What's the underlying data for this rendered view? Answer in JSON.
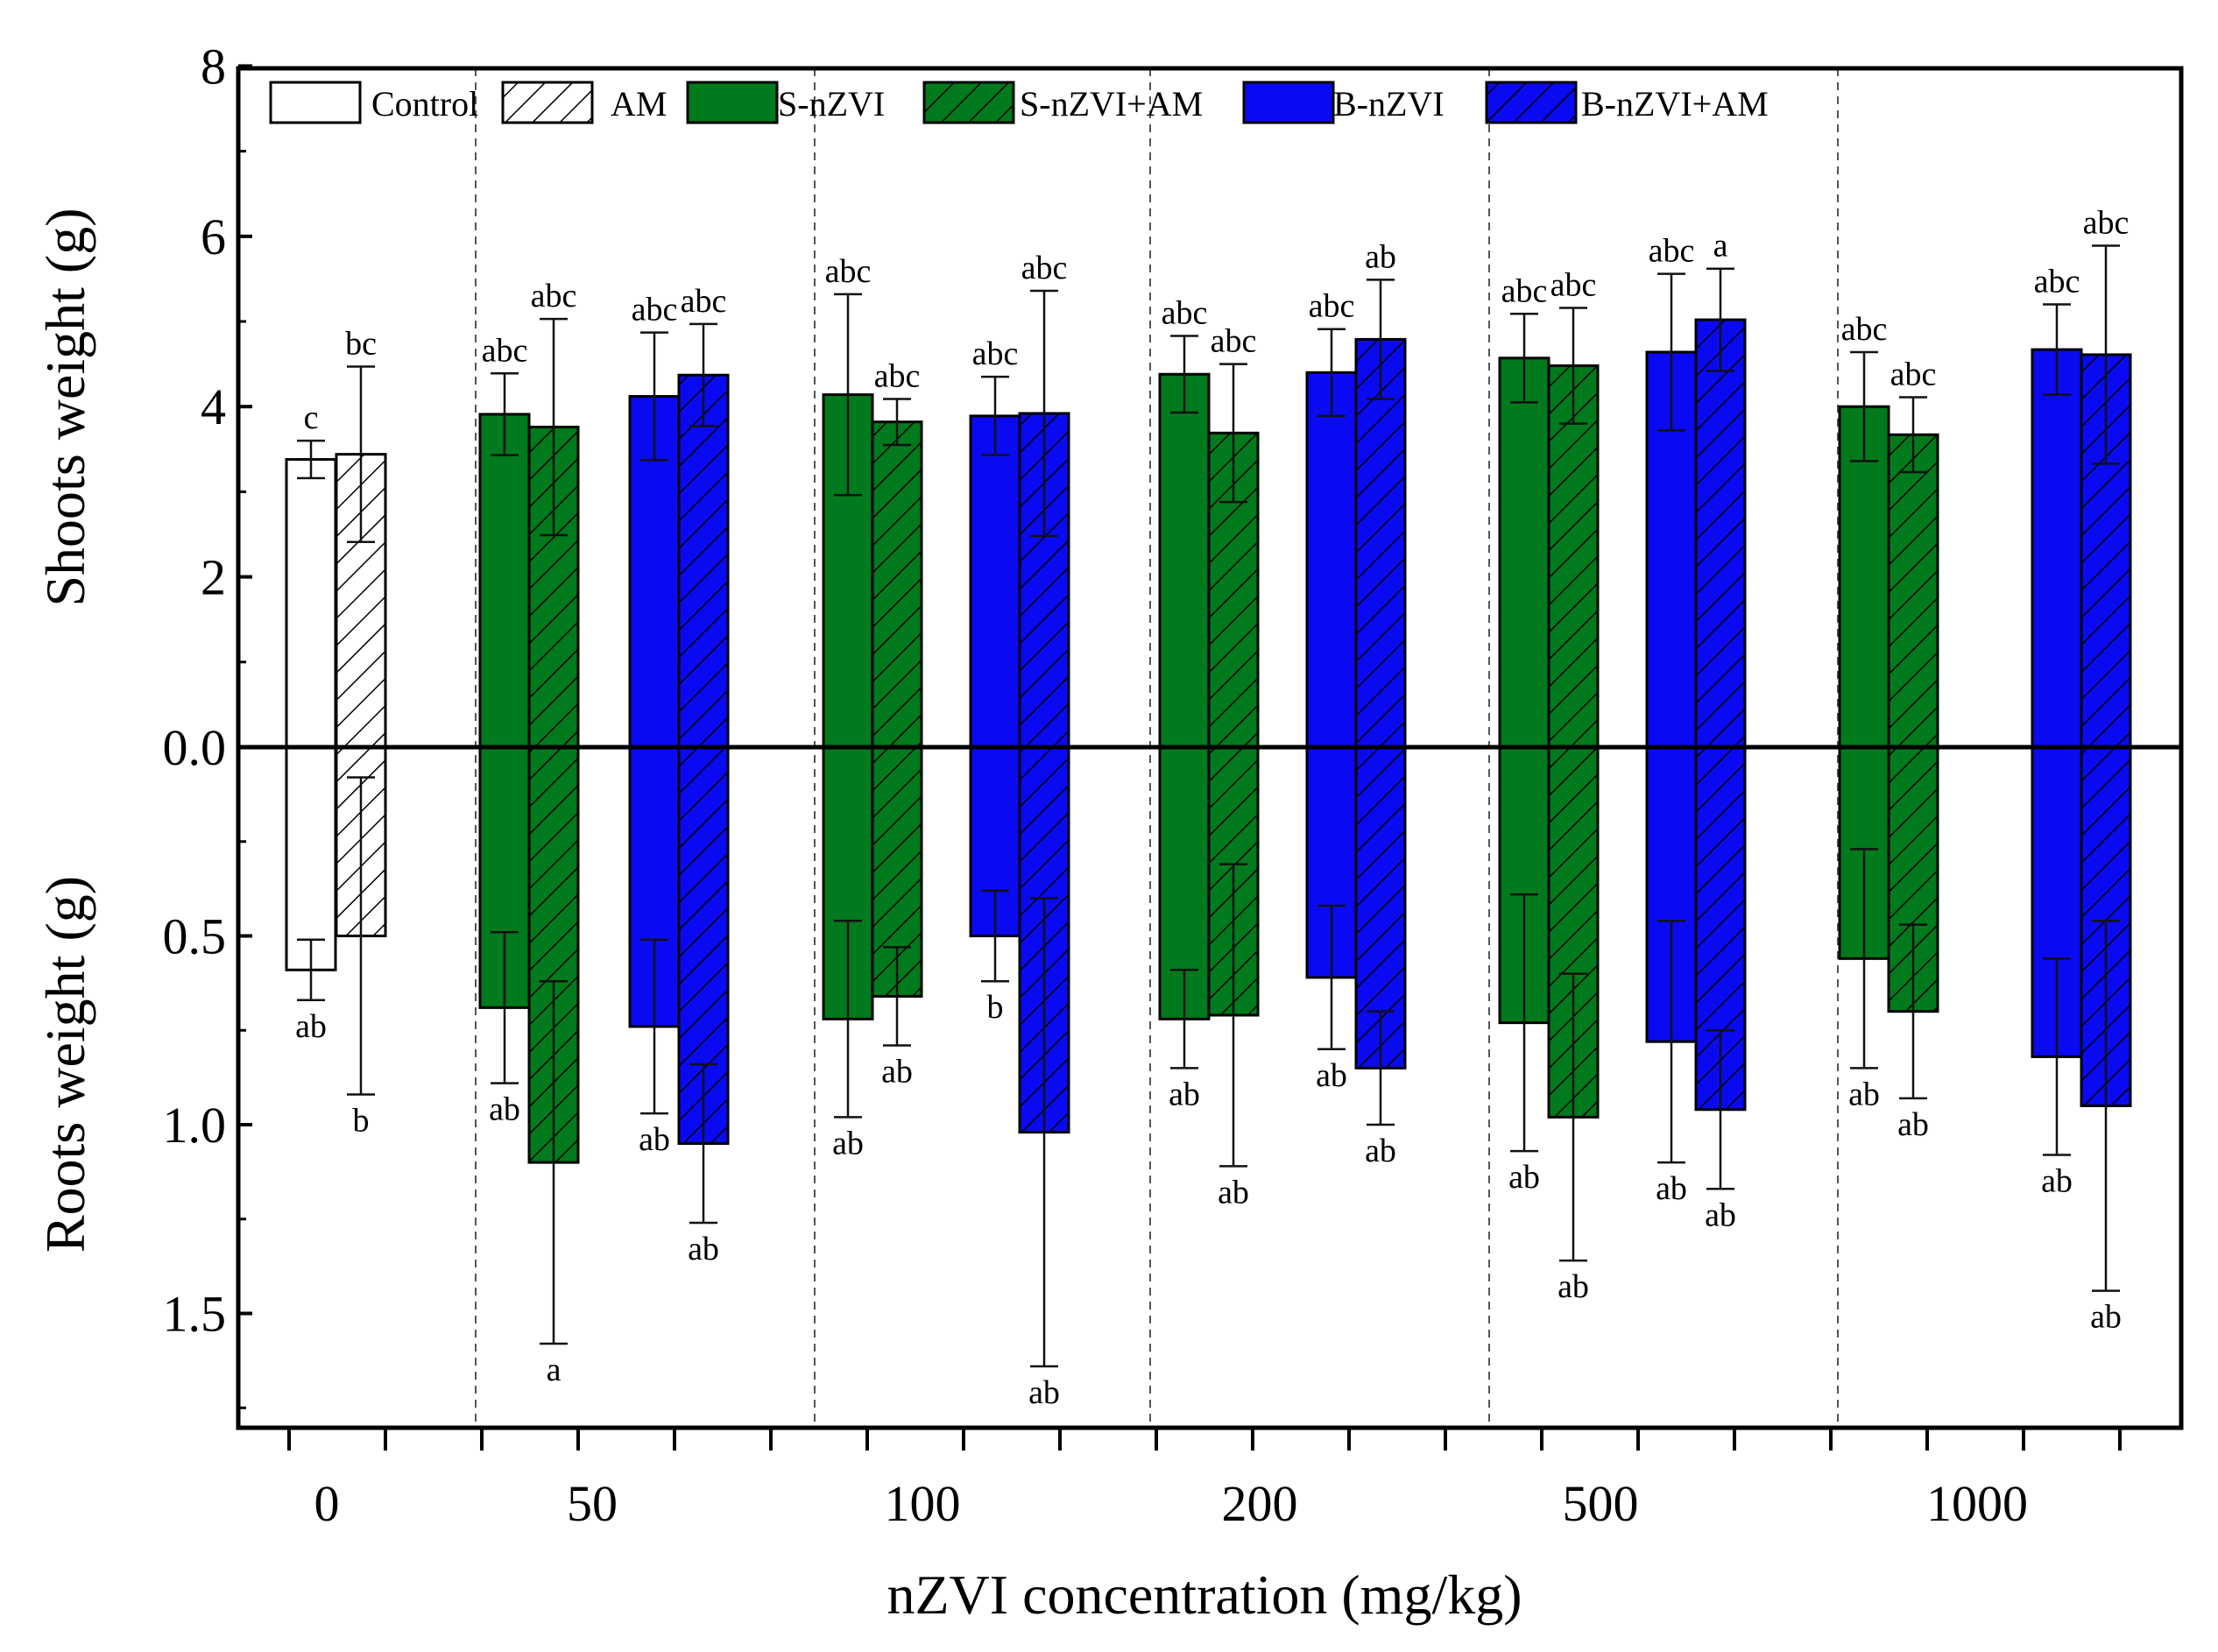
{
  "chart_data": {
    "type": "bar",
    "xlabel": "nZVI concentration (mg/kg)",
    "ylabel_top": "Shoots weight (g)",
    "ylabel_bottom": "Roots weight (g)",
    "ylim_top": [
      0,
      8
    ],
    "ylim_bottom": [
      0,
      1.8
    ],
    "yticks_top": [
      "8",
      "6",
      "4",
      "2",
      "0.0"
    ],
    "yticks_bottom": [
      "0.5",
      "1.0",
      "1.5"
    ],
    "categories": [
      "0",
      "50",
      "100",
      "200",
      "500",
      "1000"
    ],
    "colors": {
      "Control": "#ffffff",
      "AM": "#ffffff",
      "S-nZVI": "#007a1c",
      "S-nZVI+AM": "#007a1c",
      "B-nZVI": "#0a0af2",
      "B-nZVI+AM": "#0a0af2"
    },
    "legend": [
      "Control",
      "AM",
      "S-nZVI",
      "S-nZVI+AM",
      "B-nZVI",
      "B-nZVI+AM"
    ],
    "bars": [
      {
        "group": "0",
        "series": "Control",
        "shoot": 3.38,
        "shoot_err": 0.22,
        "shoot_sig": "c",
        "root": 0.59,
        "root_err": 0.08,
        "root_sig": "ab"
      },
      {
        "group": "0",
        "series": "AM",
        "shoot": 3.44,
        "shoot_err": 1.03,
        "shoot_sig": "bc",
        "root": 0.5,
        "root_err": 0.42,
        "root_sig": "b"
      },
      {
        "group": "50",
        "series": "S-nZVI",
        "shoot": 3.91,
        "shoot_err": 0.48,
        "shoot_sig": "abc",
        "root": 0.69,
        "root_err": 0.2,
        "root_sig": "ab"
      },
      {
        "group": "50",
        "series": "S-nZVI+AM",
        "shoot": 3.76,
        "shoot_err": 1.27,
        "shoot_sig": "abc",
        "root": 1.1,
        "root_err": 0.48,
        "root_sig": "a"
      },
      {
        "group": "50",
        "series": "B-nZVI",
        "shoot": 4.12,
        "shoot_err": 0.75,
        "shoot_sig": "abc",
        "root": 0.74,
        "root_err": 0.23,
        "root_sig": "ab"
      },
      {
        "group": "50",
        "series": "B-nZVI+AM",
        "shoot": 4.37,
        "shoot_err": 0.6,
        "shoot_sig": "abc",
        "root": 1.05,
        "root_err": 0.21,
        "root_sig": "ab"
      },
      {
        "group": "100",
        "series": "S-nZVI",
        "shoot": 4.14,
        "shoot_err": 1.18,
        "shoot_sig": "abc",
        "root": 0.72,
        "root_err": 0.26,
        "root_sig": "ab"
      },
      {
        "group": "100",
        "series": "S-nZVI+AM",
        "shoot": 3.82,
        "shoot_err": 0.27,
        "shoot_sig": "abc",
        "root": 0.66,
        "root_err": 0.13,
        "root_sig": "ab"
      },
      {
        "group": "100",
        "series": "B-nZVI",
        "shoot": 3.89,
        "shoot_err": 0.46,
        "shoot_sig": "abc",
        "root": 0.5,
        "root_err": 0.12,
        "root_sig": "b"
      },
      {
        "group": "100",
        "series": "B-nZVI+AM",
        "shoot": 3.92,
        "shoot_err": 1.44,
        "shoot_sig": "abc",
        "root": 1.02,
        "root_err": 0.62,
        "root_sig": "ab"
      },
      {
        "group": "200",
        "series": "S-nZVI",
        "shoot": 4.38,
        "shoot_err": 0.45,
        "shoot_sig": "abc",
        "root": 0.72,
        "root_err": 0.13,
        "root_sig": "ab"
      },
      {
        "group": "200",
        "series": "S-nZVI+AM",
        "shoot": 3.69,
        "shoot_err": 0.81,
        "shoot_sig": "abc",
        "root": 0.71,
        "root_err": 0.4,
        "root_sig": "ab"
      },
      {
        "group": "200",
        "series": "B-nZVI",
        "shoot": 4.4,
        "shoot_err": 0.51,
        "shoot_sig": "abc",
        "root": 0.61,
        "root_err": 0.19,
        "root_sig": "ab"
      },
      {
        "group": "200",
        "series": "B-nZVI+AM",
        "shoot": 4.79,
        "shoot_err": 0.7,
        "shoot_sig": "ab",
        "root": 0.85,
        "root_err": 0.15,
        "root_sig": "ab"
      },
      {
        "group": "500",
        "series": "S-nZVI",
        "shoot": 4.57,
        "shoot_err": 0.52,
        "shoot_sig": "abc",
        "root": 0.73,
        "root_err": 0.34,
        "root_sig": "ab"
      },
      {
        "group": "500",
        "series": "S-nZVI+AM",
        "shoot": 4.48,
        "shoot_err": 0.68,
        "shoot_sig": "abc",
        "root": 0.98,
        "root_err": 0.38,
        "root_sig": "ab"
      },
      {
        "group": "500",
        "series": "B-nZVI",
        "shoot": 4.64,
        "shoot_err": 0.92,
        "shoot_sig": "abc",
        "root": 0.78,
        "root_err": 0.32,
        "root_sig": "ab"
      },
      {
        "group": "500",
        "series": "B-nZVI+AM",
        "shoot": 5.02,
        "shoot_err": 0.6,
        "shoot_sig": "a",
        "root": 0.96,
        "root_err": 0.21,
        "root_sig": "ab"
      },
      {
        "group": "1000",
        "series": "S-nZVI",
        "shoot": 4.0,
        "shoot_err": 0.64,
        "shoot_sig": "abc",
        "root": 0.56,
        "root_err": 0.29,
        "root_sig": "ab"
      },
      {
        "group": "1000",
        "series": "S-nZVI+AM",
        "shoot": 3.67,
        "shoot_err": 0.44,
        "shoot_sig": "abc",
        "root": 0.7,
        "root_err": 0.23,
        "root_sig": "ab"
      },
      {
        "group": "1000",
        "series": "B-nZVI",
        "shoot": 4.67,
        "shoot_err": 0.53,
        "shoot_sig": "abc",
        "root": 0.82,
        "root_err": 0.26,
        "root_sig": "ab"
      },
      {
        "group": "1000",
        "series": "B-nZVI+AM",
        "shoot": 4.61,
        "shoot_err": 1.28,
        "shoot_sig": "abc",
        "root": 0.95,
        "root_err": 0.49,
        "root_sig": "ab"
      }
    ]
  }
}
